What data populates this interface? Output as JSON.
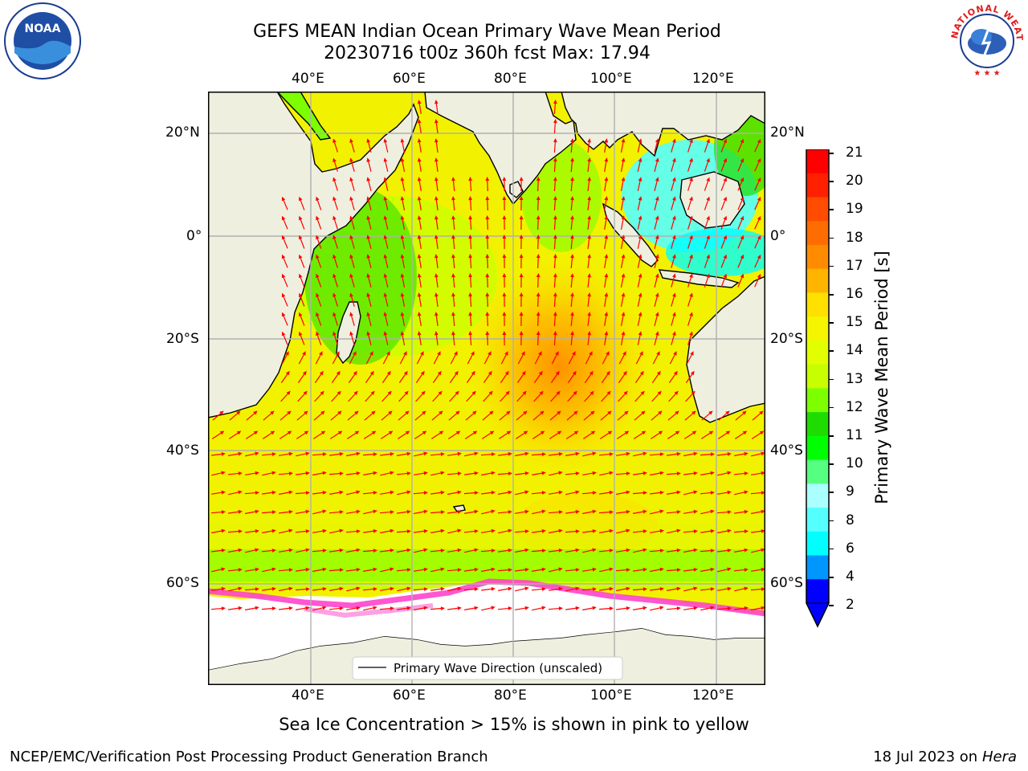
{
  "header": {
    "title_line1": "GEFS MEAN Indian Ocean Primary Wave Mean Period",
    "title_line2": "20230716 t00z 360h fcst   Max: 17.94",
    "left_logo_text": "NOAA",
    "right_logo_text": "NATIONAL WEATHER SERVICE"
  },
  "map": {
    "lon_labels": [
      "40°E",
      "60°E",
      "80°E",
      "100°E",
      "120°E"
    ],
    "lat_labels": [
      "20°N",
      "0°",
      "20°S",
      "40°S",
      "60°S"
    ],
    "legend_label": "Primary Wave Direction (unscaled)",
    "colors": {
      "land": "#efefdf",
      "ocean_base": "#f2f200",
      "arrow": "#ff0000",
      "grid": "#b0b0b0",
      "ice": "#ff44cc"
    }
  },
  "colorbar": {
    "title": "Primary Wave Mean Period [s]",
    "tick_labels": [
      "21",
      "20",
      "19",
      "18",
      "17",
      "16",
      "15",
      "14",
      "13",
      "12",
      "11",
      "10",
      "9",
      "8",
      "6",
      "4",
      "2"
    ],
    "colors": [
      "#ff0000",
      "#ff2000",
      "#ff4c00",
      "#ff6c00",
      "#ff8c00",
      "#ffb400",
      "#ffe000",
      "#f5f500",
      "#e1ff00",
      "#c8ff00",
      "#7dff00",
      "#1edc00",
      "#00ff00",
      "#55ff80",
      "#aaffff",
      "#55ffff",
      "#00ffff",
      "#0096ff",
      "#0000ff"
    ]
  },
  "footer": {
    "note": "Sea Ice Concentration > 15% is shown in pink to yellow",
    "credit": "NCEP/EMC/Verification Post Processing Product Generation Branch",
    "date": "18 Jul 2023 on ",
    "host": "Hera"
  }
}
